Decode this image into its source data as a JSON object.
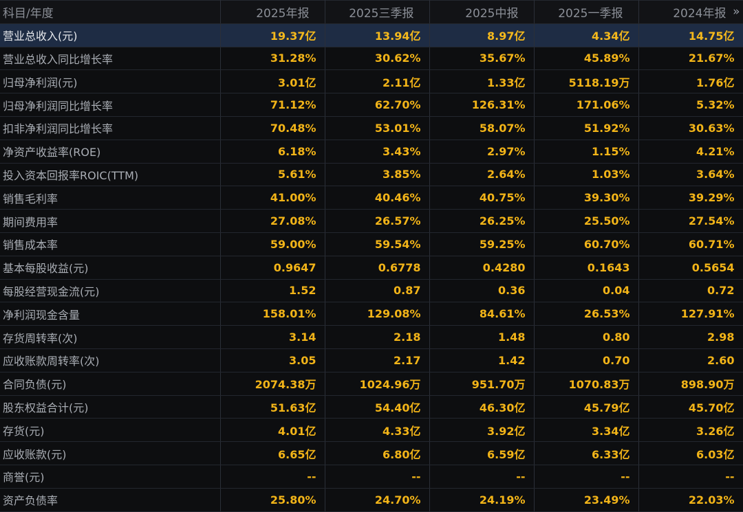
{
  "table": {
    "header": {
      "label": "科目/年度",
      "periods": [
        "2025年报",
        "2025三季报",
        "2025中报",
        "2025一季报",
        "2024年报"
      ],
      "more_icon": "»"
    },
    "rows": [
      {
        "label": "营业总收入(元)",
        "values": [
          "19.37亿",
          "13.94亿",
          "8.97亿",
          "4.34亿",
          "14.75亿"
        ]
      },
      {
        "label": "营业总收入同比增长率",
        "values": [
          "31.28%",
          "30.62%",
          "35.67%",
          "45.89%",
          "21.67%"
        ]
      },
      {
        "label": "归母净利润(元)",
        "values": [
          "3.01亿",
          "2.11亿",
          "1.33亿",
          "5118.19万",
          "1.76亿"
        ]
      },
      {
        "label": "归母净利润同比增长率",
        "values": [
          "71.12%",
          "62.70%",
          "126.31%",
          "171.06%",
          "5.32%"
        ]
      },
      {
        "label": "扣非净利润同比增长率",
        "values": [
          "70.48%",
          "53.01%",
          "58.07%",
          "51.92%",
          "30.63%"
        ]
      },
      {
        "label": "净资产收益率(ROE)",
        "values": [
          "6.18%",
          "3.43%",
          "2.97%",
          "1.15%",
          "4.21%"
        ]
      },
      {
        "label": "投入资本回报率ROIC(TTM)",
        "values": [
          "5.61%",
          "3.85%",
          "2.64%",
          "1.03%",
          "3.64%"
        ]
      },
      {
        "label": "销售毛利率",
        "values": [
          "41.00%",
          "40.46%",
          "40.75%",
          "39.30%",
          "39.29%"
        ]
      },
      {
        "label": "期间费用率",
        "values": [
          "27.08%",
          "26.57%",
          "26.25%",
          "25.50%",
          "27.54%"
        ]
      },
      {
        "label": "销售成本率",
        "values": [
          "59.00%",
          "59.54%",
          "59.25%",
          "60.70%",
          "60.71%"
        ]
      },
      {
        "label": "基本每股收益(元)",
        "values": [
          "0.9647",
          "0.6778",
          "0.4280",
          "0.1643",
          "0.5654"
        ]
      },
      {
        "label": "每股经营现金流(元)",
        "values": [
          "1.52",
          "0.87",
          "0.36",
          "0.04",
          "0.72"
        ]
      },
      {
        "label": "净利润现金含量",
        "values": [
          "158.01%",
          "129.08%",
          "84.61%",
          "26.53%",
          "127.91%"
        ]
      },
      {
        "label": "存货周转率(次)",
        "values": [
          "3.14",
          "2.18",
          "1.48",
          "0.80",
          "2.98"
        ]
      },
      {
        "label": "应收账款周转率(次)",
        "values": [
          "3.05",
          "2.17",
          "1.42",
          "0.70",
          "2.60"
        ]
      },
      {
        "label": "合同负债(元)",
        "values": [
          "2074.38万",
          "1024.96万",
          "951.70万",
          "1070.83万",
          "898.90万"
        ]
      },
      {
        "label": "股东权益合计(元)",
        "values": [
          "51.63亿",
          "54.40亿",
          "46.30亿",
          "45.79亿",
          "45.70亿"
        ]
      },
      {
        "label": "存货(元)",
        "values": [
          "4.01亿",
          "4.33亿",
          "3.92亿",
          "3.34亿",
          "3.26亿"
        ]
      },
      {
        "label": "应收账款(元)",
        "values": [
          "6.65亿",
          "6.80亿",
          "6.59亿",
          "6.33亿",
          "6.03亿"
        ]
      },
      {
        "label": "商誉(元)",
        "values": [
          "--",
          "--",
          "--",
          "--",
          "--"
        ]
      },
      {
        "label": "资产负债率",
        "values": [
          "25.80%",
          "24.70%",
          "24.19%",
          "23.49%",
          "22.03%"
        ]
      }
    ],
    "highlight_row_index": 0
  },
  "colors": {
    "value_text": "#f2b418",
    "label_text": "#a9adb4",
    "header_text": "#8b8f97",
    "highlight_row_bg": "#1e2c44",
    "background": "#0d0e10"
  }
}
